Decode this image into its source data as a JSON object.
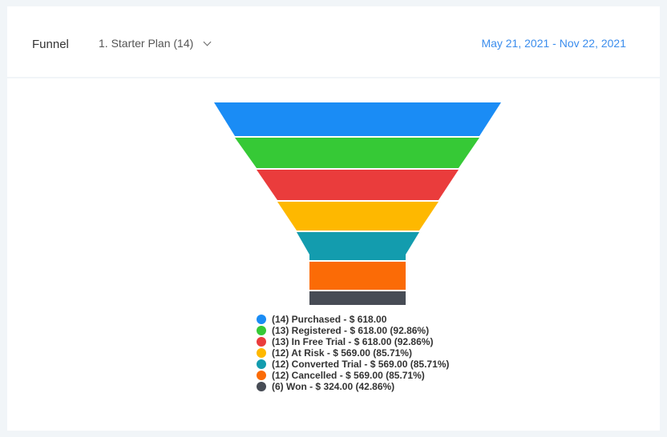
{
  "header": {
    "title": "Funnel",
    "selector": "1. Starter Plan (14)",
    "date_range": "May 21, 2021 - Nov 22, 2021"
  },
  "chart_data": {
    "type": "funnel",
    "stages": [
      {
        "name": "Purchased",
        "count": 14,
        "value": 618.0,
        "label": "(14) Purchased - $ 618.00",
        "color": "#1a8cf5"
      },
      {
        "name": "Registered",
        "count": 13,
        "value": 618.0,
        "pct": 92.86,
        "label": "(13) Registered - $ 618.00 (92.86%)",
        "color": "#36c936"
      },
      {
        "name": "In Free Trial",
        "count": 13,
        "value": 618.0,
        "pct": 92.86,
        "label": "(13) In Free Trial - $ 618.00 (92.86%)",
        "color": "#ea3c3c"
      },
      {
        "name": "At Risk",
        "count": 12,
        "value": 569.0,
        "pct": 85.71,
        "label": "(12) At Risk - $ 569.00 (85.71%)",
        "color": "#feb800"
      },
      {
        "name": "Converted Trial",
        "count": 12,
        "value": 569.0,
        "pct": 85.71,
        "label": "(12) Converted Trial - $ 569.00 (85.71%)",
        "color": "#139cae"
      },
      {
        "name": "Cancelled",
        "count": 12,
        "value": 569.0,
        "pct": 85.71,
        "label": "(12) Cancelled - $ 569.00 (85.71%)",
        "color": "#fb6b06"
      },
      {
        "name": "Won",
        "count": 6,
        "value": 324.0,
        "pct": 42.86,
        "label": "(6) Won - $ 324.00 (42.86%)",
        "color": "#474c55"
      }
    ],
    "legend_position": "bottom"
  }
}
